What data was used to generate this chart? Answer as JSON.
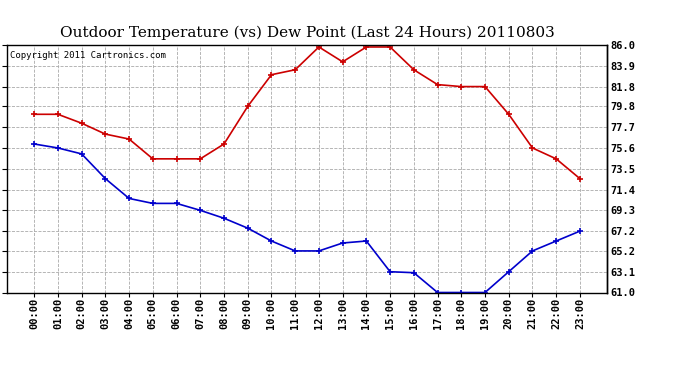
{
  "title": "Outdoor Temperature (vs) Dew Point (Last 24 Hours) 20110803",
  "copyright_text": "Copyright 2011 Cartronics.com",
  "x_labels": [
    "00:00",
    "01:00",
    "02:00",
    "03:00",
    "04:00",
    "05:00",
    "06:00",
    "07:00",
    "08:00",
    "09:00",
    "10:00",
    "11:00",
    "12:00",
    "13:00",
    "14:00",
    "15:00",
    "16:00",
    "17:00",
    "18:00",
    "19:00",
    "20:00",
    "21:00",
    "22:00",
    "23:00"
  ],
  "temp_data": [
    79.0,
    79.0,
    78.1,
    77.0,
    76.5,
    74.5,
    74.5,
    74.5,
    76.0,
    79.8,
    83.0,
    83.5,
    85.8,
    84.3,
    85.8,
    85.8,
    83.5,
    82.0,
    81.8,
    81.8,
    79.0,
    75.6,
    74.5,
    72.5
  ],
  "dew_data": [
    76.0,
    75.6,
    75.0,
    72.5,
    70.5,
    70.0,
    70.0,
    69.3,
    68.5,
    67.5,
    66.2,
    65.2,
    65.2,
    66.0,
    66.2,
    63.1,
    63.0,
    61.0,
    61.0,
    61.0,
    63.1,
    65.2,
    66.2,
    67.2
  ],
  "temp_color": "#cc0000",
  "dew_color": "#0000cc",
  "bg_color": "#ffffff",
  "plot_bg_color": "#ffffff",
  "grid_color": "#aaaaaa",
  "ylim": [
    61.0,
    86.0
  ],
  "yticks": [
    61.0,
    63.1,
    65.2,
    67.2,
    69.3,
    71.4,
    73.5,
    75.6,
    77.7,
    79.8,
    81.8,
    83.9,
    86.0
  ],
  "title_fontsize": 11,
  "copyright_fontsize": 6.5,
  "tick_fontsize": 7.5
}
